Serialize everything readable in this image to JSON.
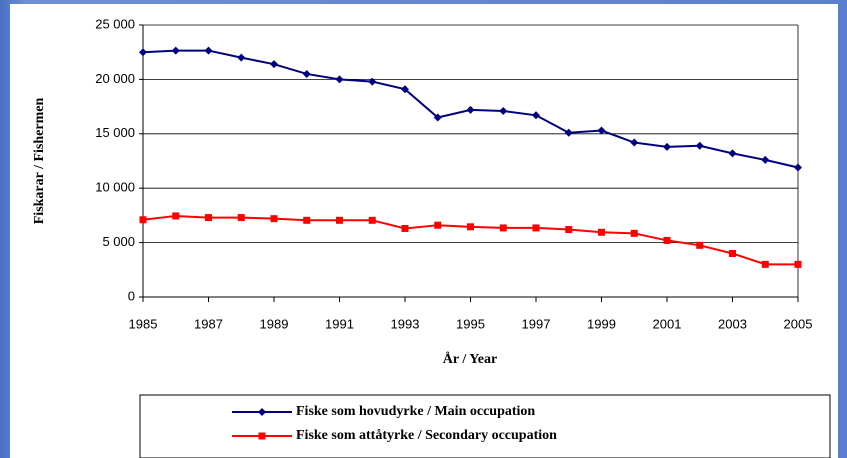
{
  "chart_data": {
    "type": "line",
    "xlabel": "År / Year",
    "ylabel": "Fiskarar / Fishermen",
    "x": [
      1985,
      1986,
      1987,
      1988,
      1989,
      1990,
      1991,
      1992,
      1993,
      1994,
      1995,
      1996,
      1997,
      1998,
      1999,
      2000,
      2001,
      2002,
      2003,
      2004,
      2005
    ],
    "series": [
      {
        "name": "Fiske som hovudyrke / Main occupation",
        "color": "#000080",
        "marker": "diamond",
        "values": [
          22500,
          22650,
          22650,
          22000,
          21400,
          20500,
          20000,
          19800,
          19100,
          16500,
          17200,
          17100,
          16700,
          15100,
          15300,
          14200,
          13800,
          13900,
          13200,
          12600,
          11900
        ]
      },
      {
        "name": "Fiske som attåtyrke / Secondary occupation",
        "color": "#ff0000",
        "marker": "square",
        "values": [
          7100,
          7450,
          7300,
          7300,
          7200,
          7050,
          7050,
          7050,
          6300,
          6600,
          6450,
          6350,
          6350,
          6200,
          5950,
          5850,
          5200,
          4750,
          4000,
          3000,
          3000
        ]
      }
    ],
    "xlim": [
      1985,
      2005
    ],
    "xticks": [
      1985,
      1987,
      1989,
      1991,
      1993,
      1995,
      1997,
      1999,
      2001,
      2003,
      2005
    ],
    "ylim": [
      0,
      25000
    ],
    "yticks": [
      0,
      {
        "value": 5000,
        "label": "5 000"
      },
      {
        "value": 10000,
        "label": "10 000"
      },
      {
        "value": 15000,
        "label": "15 000"
      },
      {
        "value": 20000,
        "label": "20 000"
      },
      {
        "value": 25000,
        "label": "25 000"
      }
    ],
    "grid": true,
    "legend": "bottom"
  }
}
